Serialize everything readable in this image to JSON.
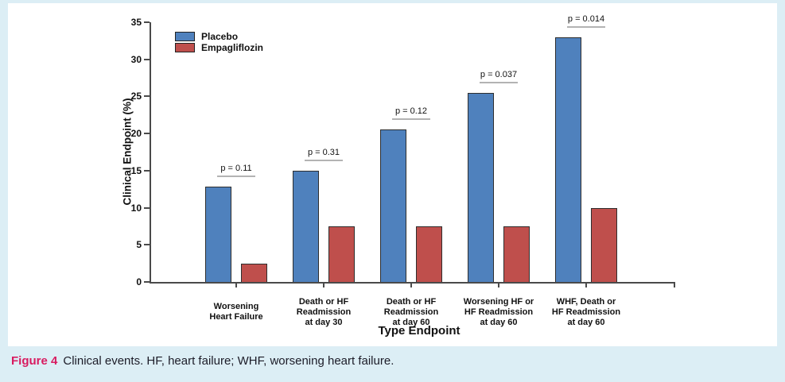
{
  "page": {
    "background_color": "#dceef5",
    "panel_color": "#ffffff"
  },
  "figure_caption": {
    "label": "Figure 4",
    "label_color": "#d81b60",
    "text": "Clinical events. HF, heart failure; WHF, worsening heart failure."
  },
  "chart_data": {
    "type": "bar",
    "title": "",
    "xlabel": "Type Endpoint",
    "ylabel": "Clinical Endpoint (%)",
    "ylim": [
      0,
      35
    ],
    "yticks": [
      0,
      5,
      10,
      15,
      20,
      25,
      30,
      35
    ],
    "grid": false,
    "legend_position": "top-left",
    "categories": [
      "Worsening\nHeart Failure",
      "Death or HF\nReadmission\nat day 30",
      "Death or HF\nReadmission\nat day 60",
      "Worsening HF or\nHF Readmission\nat day 60",
      "WHF, Death or\nHF Readmission\nat day 60"
    ],
    "series": [
      {
        "name": "Placebo",
        "color": "#4f81bd",
        "values": [
          12.8,
          15,
          20.5,
          25.5,
          33
        ]
      },
      {
        "name": "Empagliflozin",
        "color": "#bf4f4c",
        "values": [
          2.5,
          7.5,
          7.5,
          7.5,
          10
        ]
      }
    ],
    "p_values": [
      "p = 0.11",
      "p = 0.31",
      "p = 0.12",
      "p = 0.037",
      "p = 0.014"
    ]
  },
  "style": {
    "axis_color": "#4a4a4a",
    "bar_border_color": "#2e2e2e",
    "p_line_color": "#b3b3b3",
    "text_color": "#111111"
  }
}
